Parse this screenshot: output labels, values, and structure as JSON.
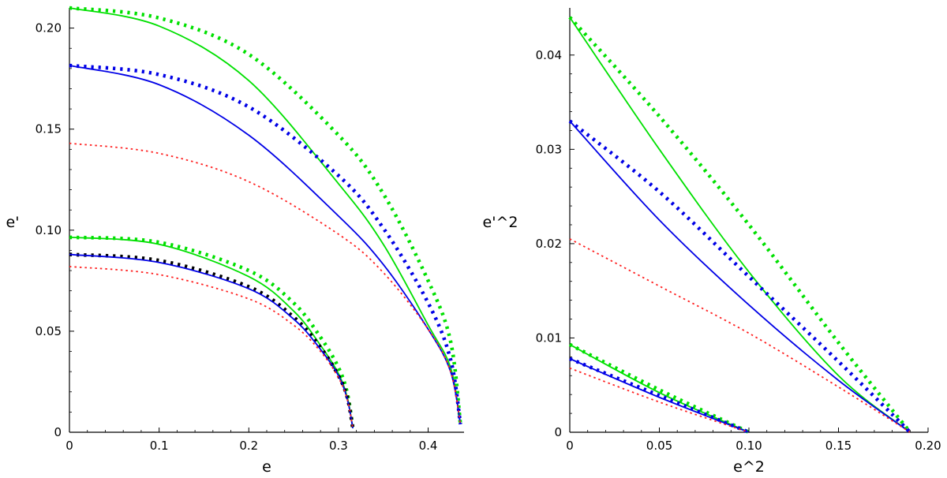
{
  "chart_data": [
    {
      "type": "line",
      "xlabel": "e",
      "ylabel": "e'",
      "xlim": [
        0,
        0.44
      ],
      "ylim": [
        0,
        0.21
      ],
      "xticks": [
        0,
        0.1,
        0.2,
        0.3,
        0.4
      ],
      "xtick_labels": [
        "0",
        "0.1",
        "0.2",
        "0.3",
        "0.4"
      ],
      "yticks": [
        0,
        0.05,
        0.1,
        0.15,
        0.2
      ],
      "ytick_labels": [
        "0",
        "0.05",
        "0.10",
        "0.15",
        "0.20"
      ],
      "series": [
        {
          "name": "green-solid-outer",
          "color": "#00e000",
          "style": "solid",
          "x": [
            0,
            0.1,
            0.2,
            0.3,
            0.35,
            0.4,
            0.425,
            0.436
          ],
          "y": [
            0.21,
            0.201,
            0.174,
            0.123,
            0.093,
            0.053,
            0.032,
            0.004
          ]
        },
        {
          "name": "green-dotted-outer",
          "color": "#00e000",
          "style": "dotted-thick",
          "x": [
            0,
            0.1,
            0.2,
            0.3,
            0.35,
            0.4,
            0.425,
            0.436
          ],
          "y": [
            0.21,
            0.205,
            0.187,
            0.147,
            0.118,
            0.075,
            0.045,
            0.004
          ]
        },
        {
          "name": "blue-dotted-outer",
          "color": "#0000e6",
          "style": "dotted-thick",
          "x": [
            0,
            0.1,
            0.2,
            0.3,
            0.35,
            0.4,
            0.425,
            0.436
          ],
          "y": [
            0.1815,
            0.177,
            0.161,
            0.127,
            0.101,
            0.064,
            0.036,
            0.004
          ]
        },
        {
          "name": "blue-solid-outer",
          "color": "#0000e6",
          "style": "solid",
          "x": [
            0,
            0.1,
            0.2,
            0.3,
            0.35,
            0.4,
            0.425,
            0.436
          ],
          "y": [
            0.1815,
            0.172,
            0.147,
            0.107,
            0.083,
            0.051,
            0.03,
            0.004
          ]
        },
        {
          "name": "red-dotted-outer",
          "color": "#ff2020",
          "style": "dotted-thin",
          "x": [
            0,
            0.1,
            0.2,
            0.3,
            0.35,
            0.4,
            0.425,
            0.436
          ],
          "y": [
            0.143,
            0.138,
            0.124,
            0.098,
            0.079,
            0.051,
            0.03,
            0.004
          ]
        },
        {
          "name": "green-solid-inner",
          "color": "#00e000",
          "style": "solid",
          "x": [
            0,
            0.1,
            0.2,
            0.25,
            0.28,
            0.3,
            0.31,
            0.316
          ],
          "y": [
            0.0965,
            0.093,
            0.077,
            0.06,
            0.043,
            0.029,
            0.017,
            0.002
          ]
        },
        {
          "name": "green-dotted-inner",
          "color": "#00e000",
          "style": "dotted-thick",
          "x": [
            0,
            0.1,
            0.2,
            0.25,
            0.28,
            0.3,
            0.31,
            0.316
          ],
          "y": [
            0.0965,
            0.094,
            0.08,
            0.064,
            0.047,
            0.032,
            0.019,
            0.002
          ]
        },
        {
          "name": "black-dotted-inner",
          "color": "#000000",
          "style": "dotted-thick",
          "x": [
            0,
            0.1,
            0.2,
            0.25,
            0.28,
            0.3,
            0.31,
            0.316
          ],
          "y": [
            0.088,
            0.085,
            0.072,
            0.057,
            0.042,
            0.028,
            0.017,
            0.002
          ]
        },
        {
          "name": "blue-solid-inner",
          "color": "#0000e6",
          "style": "solid",
          "x": [
            0,
            0.1,
            0.2,
            0.25,
            0.28,
            0.3,
            0.31,
            0.316
          ],
          "y": [
            0.088,
            0.084,
            0.071,
            0.056,
            0.041,
            0.028,
            0.016,
            0.002
          ]
        },
        {
          "name": "red-dotted-inner",
          "color": "#ff2020",
          "style": "dotted-thin",
          "x": [
            0,
            0.1,
            0.2,
            0.25,
            0.28,
            0.3,
            0.31,
            0.316
          ],
          "y": [
            0.082,
            0.078,
            0.066,
            0.053,
            0.04,
            0.027,
            0.016,
            0.002
          ]
        }
      ]
    },
    {
      "type": "line",
      "xlabel": "e^2",
      "ylabel": "e'^2",
      "xlim": [
        0,
        0.2
      ],
      "ylim": [
        0,
        0.045
      ],
      "xticks": [
        0,
        0.05,
        0.1,
        0.15,
        0.2
      ],
      "xtick_labels": [
        "0",
        "0.05",
        "0.10",
        "0.15",
        "0.20"
      ],
      "yticks": [
        0,
        0.01,
        0.02,
        0.03,
        0.04
      ],
      "ytick_labels": [
        "0",
        "0.01",
        "0.02",
        "0.03",
        "0.04"
      ],
      "series": [
        {
          "name": "green-solid-outer",
          "color": "#00e000",
          "style": "solid",
          "x": [
            0,
            0.05,
            0.1,
            0.15,
            0.19
          ],
          "y": [
            0.044,
            0.03,
            0.017,
            0.006,
            0
          ]
        },
        {
          "name": "green-dotted-outer",
          "color": "#00e000",
          "style": "dotted-thick",
          "x": [
            0,
            0.05,
            0.1,
            0.15,
            0.19
          ],
          "y": [
            0.044,
            0.0335,
            0.022,
            0.0095,
            0
          ]
        },
        {
          "name": "blue-dotted-outer",
          "color": "#0000e6",
          "style": "dotted-thick",
          "x": [
            0,
            0.05,
            0.1,
            0.15,
            0.19
          ],
          "y": [
            0.033,
            0.0255,
            0.0165,
            0.0075,
            0
          ]
        },
        {
          "name": "blue-solid-outer",
          "color": "#0000e6",
          "style": "solid",
          "x": [
            0,
            0.05,
            0.1,
            0.15,
            0.19
          ],
          "y": [
            0.033,
            0.0225,
            0.0135,
            0.0055,
            0
          ]
        },
        {
          "name": "red-dotted-outer",
          "color": "#ff2020",
          "style": "dotted-thin",
          "x": [
            0,
            0.05,
            0.1,
            0.15,
            0.19
          ],
          "y": [
            0.0205,
            0.0155,
            0.0105,
            0.0048,
            0
          ]
        },
        {
          "name": "green-solid-inner",
          "color": "#00e000",
          "style": "solid",
          "x": [
            0,
            0.05,
            0.1
          ],
          "y": [
            0.0093,
            0.0042,
            0
          ]
        },
        {
          "name": "green-dotted-inner",
          "color": "#00e000",
          "style": "dotted-thick",
          "x": [
            0,
            0.05,
            0.1
          ],
          "y": [
            0.0093,
            0.0045,
            0
          ]
        },
        {
          "name": "blue-dotted-inner",
          "color": "#0000e6",
          "style": "dotted-thick",
          "x": [
            0,
            0.05,
            0.1
          ],
          "y": [
            0.0078,
            0.0039,
            0
          ]
        },
        {
          "name": "blue-solid-inner",
          "color": "#0000e6",
          "style": "solid",
          "x": [
            0,
            0.05,
            0.1
          ],
          "y": [
            0.0078,
            0.0037,
            0
          ]
        },
        {
          "name": "red-dotted-inner",
          "color": "#ff2020",
          "style": "dotted-thin",
          "x": [
            0,
            0.05,
            0.1
          ],
          "y": [
            0.0068,
            0.0032,
            0
          ]
        }
      ]
    }
  ]
}
